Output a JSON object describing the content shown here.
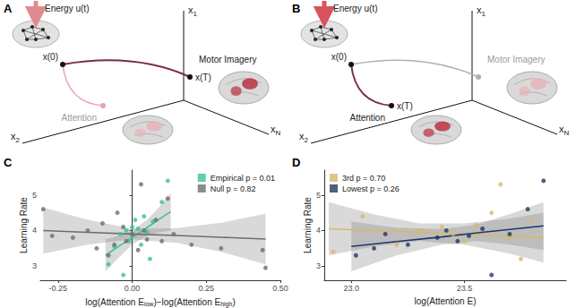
{
  "diagrams": [
    {
      "title": "A",
      "energy_label": "Energy u(t)",
      "start_label": "x(0)",
      "end_label": "x(T)",
      "axes": [
        {
          "base": "x",
          "sub": "1"
        },
        {
          "base": "x",
          "sub": "2"
        },
        {
          "base": "x",
          "sub": "N"
        }
      ],
      "states": [
        {
          "label": "Motor Imagery",
          "target": true
        },
        {
          "label": "Attention",
          "target": false
        }
      ]
    },
    {
      "title": "B",
      "energy_label": "Energy u(t)",
      "start_label": "x(0)",
      "end_label": "x(T)",
      "axes": [
        {
          "base": "x",
          "sub": "1"
        },
        {
          "base": "x",
          "sub": "2"
        },
        {
          "base": "x",
          "sub": "N"
        }
      ],
      "states": [
        {
          "label": "Motor Imagery",
          "target": false
        },
        {
          "label": "Attention",
          "target": true
        }
      ]
    }
  ],
  "chart_data": [
    {
      "type": "scatter",
      "title": "C",
      "x_label": [
        {
          "text": "log(Attention E"
        },
        {
          "text": "low",
          "sub": true
        },
        {
          "text": ")−log(Attention E"
        },
        {
          "text": "high",
          "sub": true
        },
        {
          "text": ")"
        }
      ],
      "y_label": "Learning Rate",
      "xlim": [
        -0.31,
        0.5
      ],
      "xticks": [
        -0.25,
        {
          "value": 0,
          "label": "0.00"
        },
        0.25,
        {
          "value": 0.5,
          "label": "0.50"
        }
      ],
      "ylim": [
        2.6,
        5.7
      ],
      "yticks": [
        3,
        4,
        5
      ],
      "grid": false,
      "legend": "upper right",
      "marker": "circle",
      "series": [
        {
          "name": "Empirical p = 0.01",
          "color": "#3dbf9c",
          "x": [
            -0.08,
            -0.06,
            -0.04,
            -0.03,
            -0.02,
            -0.01,
            0.0,
            0.0,
            0.01,
            0.02,
            0.03,
            0.04,
            0.05,
            0.06,
            0.07,
            0.1,
            0.12
          ],
          "values": [
            3.05,
            3.55,
            3.9,
            2.75,
            4.0,
            3.7,
            4.1,
            3.85,
            4.3,
            4.05,
            3.6,
            4.4,
            3.95,
            3.2,
            4.25,
            4.8,
            5.4
          ],
          "fit": {
            "x": [
              -0.09,
              -0.05,
              0.0,
              0.05,
              0.09,
              0.13
            ],
            "values": [
              3.3,
              3.53,
              3.8,
              4.08,
              4.31,
              4.53
            ],
            "lower": [
              2.85,
              3.2,
              3.6,
              3.85,
              3.95,
              4.0
            ],
            "upper": [
              3.75,
              3.85,
              4.0,
              4.3,
              4.65,
              5.05
            ]
          }
        },
        {
          "name": "Null p = 0.82",
          "color": "#6e6e6e",
          "x": [
            -0.3,
            -0.27,
            -0.2,
            -0.15,
            -0.12,
            -0.1,
            -0.08,
            -0.06,
            -0.05,
            -0.03,
            -0.02,
            0.0,
            0.02,
            0.03,
            0.04,
            0.05,
            0.08,
            0.1,
            0.12,
            0.14,
            0.2,
            0.3,
            0.44,
            0.45
          ],
          "values": [
            4.6,
            3.85,
            3.8,
            4.0,
            3.5,
            4.2,
            3.3,
            3.6,
            4.5,
            4.1,
            3.7,
            3.9,
            3.45,
            5.3,
            4.0,
            3.75,
            4.3,
            3.7,
            4.9,
            3.9,
            3.6,
            3.5,
            3.45,
            2.95
          ],
          "fit": {
            "x": [
              -0.3,
              -0.15,
              0.0,
              0.15,
              0.3,
              0.45
            ],
            "values": [
              4.0,
              3.95,
              3.9,
              3.86,
              3.81,
              3.76
            ],
            "lower": [
              3.35,
              3.6,
              3.75,
              3.65,
              3.4,
              3.05
            ],
            "upper": [
              4.65,
              4.3,
              4.05,
              4.07,
              4.22,
              4.47
            ]
          }
        }
      ]
    },
    {
      "type": "scatter",
      "title": "D",
      "x_label": [
        {
          "text": "log(Attention E)"
        }
      ],
      "y_label": "Learning Rate",
      "xlim": [
        22.88,
        23.95
      ],
      "xticks": [
        {
          "value": 23,
          "label": "23.0"
        },
        23.5
      ],
      "ylim": [
        2.6,
        5.7
      ],
      "yticks": [
        3,
        4,
        5
      ],
      "grid": false,
      "legend": "upper left",
      "marker": "circle",
      "series": [
        {
          "name": "3rd p = 0.70",
          "color": "#d8b86a",
          "x": [
            22.92,
            23.05,
            23.2,
            23.3,
            23.4,
            23.45,
            23.5,
            23.55,
            23.62,
            23.66,
            23.7,
            23.75,
            23.8
          ],
          "values": [
            3.4,
            4.4,
            3.6,
            4.0,
            4.1,
            3.9,
            3.7,
            4.15,
            4.5,
            5.3,
            3.8,
            3.2,
            4.3
          ],
          "fit": {
            "x": [
              22.9,
              23.1,
              23.3,
              23.5,
              23.7,
              23.85
            ],
            "values": [
              4.05,
              4.0,
              3.95,
              3.9,
              3.84,
              3.8
            ],
            "lower": [
              3.3,
              3.55,
              3.7,
              3.6,
              3.35,
              3.1
            ],
            "upper": [
              4.8,
              4.45,
              4.2,
              4.2,
              4.33,
              4.5
            ]
          }
        },
        {
          "name": "Lowest p = 0.26",
          "color": "#1f3864",
          "x": [
            23.02,
            23.1,
            23.15,
            23.25,
            23.38,
            23.42,
            23.47,
            23.52,
            23.58,
            23.62,
            23.7,
            23.78,
            23.85
          ],
          "values": [
            3.3,
            3.5,
            3.9,
            3.6,
            3.8,
            4.0,
            3.7,
            3.85,
            4.05,
            2.75,
            3.9,
            4.6,
            5.4
          ],
          "fit": {
            "x": [
              23.0,
              23.2,
              23.4,
              23.55,
              23.7,
              23.85
            ],
            "values": [
              3.55,
              3.69,
              3.82,
              3.93,
              4.03,
              4.13
            ],
            "lower": [
              2.85,
              3.3,
              3.6,
              3.7,
              3.6,
              3.45
            ],
            "upper": [
              4.25,
              4.08,
              4.04,
              4.16,
              4.46,
              4.8
            ]
          }
        }
      ]
    }
  ]
}
